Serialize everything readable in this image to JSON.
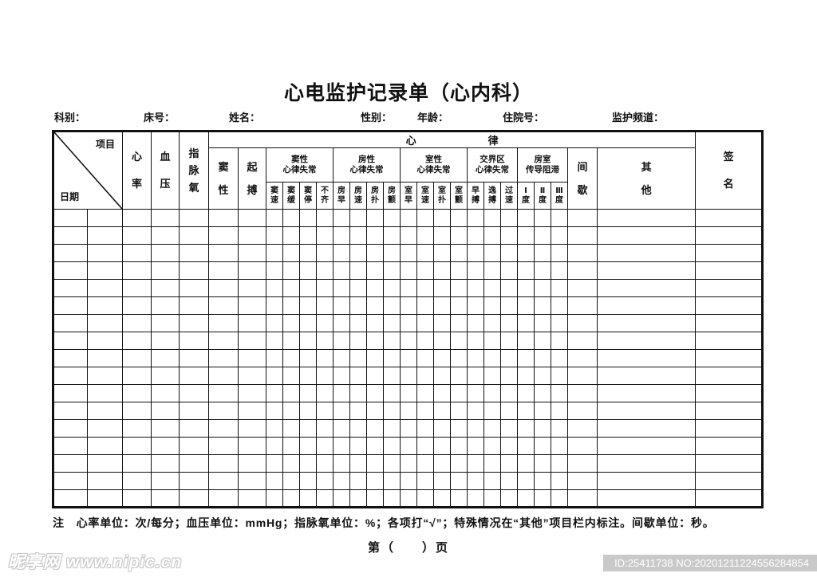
{
  "page": {
    "title": "心电监护记录单（心内科）",
    "footer": "第（　　）页",
    "note": "注　心率单位：次/每分；血压单位：mmHg；指脉氧单位：%；各项打“√”；特殊情况在“其他”项目栏内标注。间歇单位：秒。",
    "watermark_left": "昵享网 www.nipic.cn",
    "watermark_right": "ID:25411738 NO:20201211224556284854"
  },
  "colors": {
    "ink": "#111111",
    "watermark_bar": "#c9c9c9"
  },
  "info": [
    "科别：",
    "床号：",
    "姓名：",
    "性别：",
    "年龄：",
    "住院号：",
    "监护频道："
  ],
  "table": {
    "corner_top": "项目",
    "corner_bottom": "日期",
    "fixed_columns": [
      "心\n率",
      "血\n压",
      "指\n脉\n氧"
    ],
    "rhythm_header": "心律",
    "rhythm_simple": [
      "窦\n性",
      "起\n搏"
    ],
    "groups": [
      {
        "label": "窦性\n心律失常",
        "subs": [
          "窦\n速",
          "窦\n缓",
          "窦\n停",
          "不\n齐"
        ]
      },
      {
        "label": "房性\n心律失常",
        "subs": [
          "房\n早",
          "房\n速",
          "房\n扑",
          "房\n颤"
        ]
      },
      {
        "label": "室性\n心律失常",
        "subs": [
          "室\n早",
          "室\n速",
          "室\n扑",
          "室\n颤"
        ]
      },
      {
        "label": "交界区\n心律失常",
        "subs": [
          "早\n搏",
          "逸\n搏",
          "过\n速"
        ]
      },
      {
        "label": "房室\n传导阻滞",
        "subs": [
          "Ⅰ\n度",
          "Ⅱ\n度",
          "Ⅲ\n度"
        ]
      }
    ],
    "tail_columns": [
      "间\n歇",
      "其\n他"
    ],
    "signature": "签\n名",
    "body_row_count": 17,
    "body_col_count": 28
  }
}
